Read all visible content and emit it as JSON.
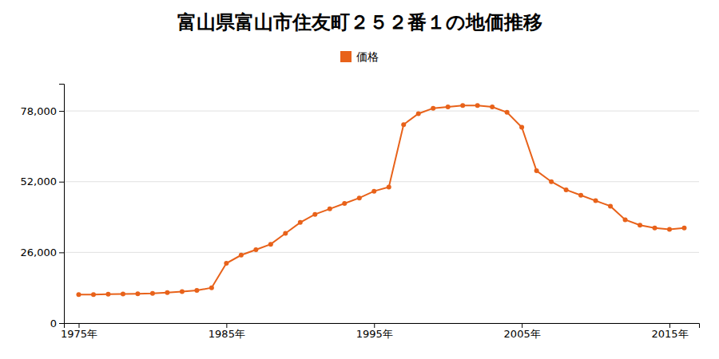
{
  "chart_data": {
    "type": "line",
    "title": "富山県富山市住友町２５２番１の地価推移",
    "x": [
      1975,
      1976,
      1977,
      1978,
      1979,
      1980,
      1981,
      1982,
      1983,
      1984,
      1985,
      1986,
      1987,
      1988,
      1989,
      1990,
      1991,
      1992,
      1993,
      1994,
      1995,
      1996,
      1997,
      1998,
      1999,
      2000,
      2001,
      2002,
      2003,
      2004,
      2005,
      2006,
      2007,
      2008,
      2009,
      2010,
      2011,
      2012,
      2013,
      2014,
      2015,
      2016
    ],
    "series": [
      {
        "name": "価格",
        "color": "#E8621A",
        "marker": "circle",
        "values": [
          10500,
          10500,
          10600,
          10700,
          10800,
          10900,
          11200,
          11600,
          12000,
          13000,
          22000,
          25000,
          27000,
          29000,
          33000,
          37000,
          40000,
          42000,
          44000,
          46000,
          48500,
          50000,
          73000,
          77000,
          79000,
          79500,
          80000,
          80000,
          79500,
          77500,
          72000,
          56000,
          52000,
          49000,
          47000,
          45000,
          43000,
          38000,
          36000,
          35000,
          34500,
          35000
        ]
      }
    ],
    "xlim": [
      1974,
      2017
    ],
    "xticks": [
      {
        "value": 1975,
        "label": "1975年"
      },
      {
        "value": 1985,
        "label": "1985年"
      },
      {
        "value": 1995,
        "label": "1995年"
      },
      {
        "value": 2005,
        "label": "2005年"
      },
      {
        "value": 2015,
        "label": "2015年"
      }
    ],
    "ylim": [
      0,
      88000
    ],
    "yticks": [
      0,
      {
        "value": 26000,
        "label": "26,000"
      },
      {
        "value": 52000,
        "label": "52,000"
      },
      {
        "value": 78000,
        "label": "78,000"
      }
    ],
    "grid": true,
    "legend": "top"
  }
}
